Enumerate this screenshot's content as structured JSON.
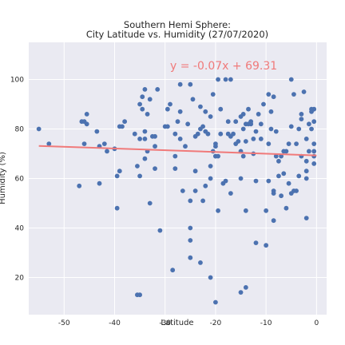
{
  "chart_data": {
    "type": "scatter",
    "title": [
      "Southern Hemi Sphere:",
      "City Latitude vs. Humidity (27/07/2020)"
    ],
    "xlabel": "Latitude",
    "ylabel": "Humidity (%)",
    "xlim": [
      -57,
      2
    ],
    "ylim": [
      5,
      115
    ],
    "xticks": [
      -50,
      -40,
      -30,
      -20,
      -10,
      0
    ],
    "yticks": [
      20,
      40,
      60,
      80,
      100
    ],
    "grid": true,
    "colors": {
      "background": "#eaeaf2",
      "grid": "#ffffff",
      "points": "#4c72b0",
      "regression": "#f07a7a",
      "annotation": "#f07a7a"
    },
    "annotation": {
      "text": "y = -0.07x + 69.31",
      "x": -29,
      "y": 104
    },
    "regression": {
      "slope": -0.07,
      "intercept": 69.31,
      "x_range": [
        -55,
        0
      ]
    },
    "points": [
      [
        -55,
        80
      ],
      [
        -53,
        74
      ],
      [
        -47,
        57
      ],
      [
        -46.5,
        83
      ],
      [
        -46,
        83
      ],
      [
        -46,
        74
      ],
      [
        -45.5,
        86
      ],
      [
        -45.5,
        82
      ],
      [
        -43.5,
        79
      ],
      [
        -43,
        73
      ],
      [
        -43,
        58
      ],
      [
        -42,
        74
      ],
      [
        -41.5,
        71
      ],
      [
        -40,
        72
      ],
      [
        -39.5,
        48
      ],
      [
        -39.5,
        61
      ],
      [
        -39,
        63
      ],
      [
        -39,
        81
      ],
      [
        -38.5,
        81
      ],
      [
        -38,
        83
      ],
      [
        -36,
        78
      ],
      [
        -35.5,
        13
      ],
      [
        -35,
        13
      ],
      [
        -35.5,
        65
      ],
      [
        -35,
        61
      ],
      [
        -35,
        76
      ],
      [
        -35,
        90
      ],
      [
        -34.5,
        88
      ],
      [
        -34.5,
        93
      ],
      [
        -34,
        96
      ],
      [
        -34,
        79
      ],
      [
        -34,
        76
      ],
      [
        -34,
        68
      ],
      [
        -33.5,
        71
      ],
      [
        -33.5,
        86
      ],
      [
        -33,
        92
      ],
      [
        -33,
        50
      ],
      [
        -32.5,
        77
      ],
      [
        -32,
        77
      ],
      [
        -32,
        64
      ],
      [
        -32,
        73
      ],
      [
        -31.5,
        96
      ],
      [
        -31,
        39
      ],
      [
        -30,
        81
      ],
      [
        -29.5,
        81
      ],
      [
        -29.5,
        88
      ],
      [
        -29,
        90
      ],
      [
        -28.5,
        23
      ],
      [
        -28,
        69
      ],
      [
        -28,
        78
      ],
      [
        -28,
        64
      ],
      [
        -27.5,
        83
      ],
      [
        -27,
        98
      ],
      [
        -27,
        76
      ],
      [
        -27,
        87
      ],
      [
        -26.5,
        55
      ],
      [
        -26,
        73
      ],
      [
        -25.5,
        82
      ],
      [
        -25,
        28
      ],
      [
        -25,
        51
      ],
      [
        -25,
        40
      ],
      [
        -25,
        35
      ],
      [
        -25,
        98
      ],
      [
        -24.5,
        92
      ],
      [
        -24,
        55
      ],
      [
        -24,
        77
      ],
      [
        -24,
        63
      ],
      [
        -23.5,
        78
      ],
      [
        -23,
        80
      ],
      [
        -23,
        89
      ],
      [
        -23,
        26
      ],
      [
        -22.5,
        81
      ],
      [
        -22.5,
        51
      ],
      [
        -22,
        79
      ],
      [
        -22,
        87
      ],
      [
        -22,
        57
      ],
      [
        -21.5,
        78
      ],
      [
        -21,
        65
      ],
      [
        -21,
        60
      ],
      [
        -21,
        85
      ],
      [
        -21,
        20
      ],
      [
        -20.5,
        94
      ],
      [
        -20.5,
        71
      ],
      [
        -20,
        10
      ],
      [
        -20,
        73
      ],
      [
        -20,
        74
      ],
      [
        -20,
        69
      ],
      [
        -20,
        69
      ],
      [
        -19.5,
        47
      ],
      [
        -19.5,
        69
      ],
      [
        -19.5,
        100
      ],
      [
        -19,
        88
      ],
      [
        -19,
        78
      ],
      [
        -18.5,
        58
      ],
      [
        -18,
        100
      ],
      [
        -18,
        59
      ],
      [
        -17.5,
        78
      ],
      [
        -17.5,
        83
      ],
      [
        -17,
        54
      ],
      [
        -17,
        77
      ],
      [
        -17,
        100
      ],
      [
        -16.5,
        78
      ],
      [
        -16,
        83
      ],
      [
        -16,
        74
      ],
      [
        -15.5,
        75
      ],
      [
        -15,
        60
      ],
      [
        -15,
        14
      ],
      [
        -15,
        71
      ],
      [
        -15,
        85
      ],
      [
        -14.5,
        86
      ],
      [
        -14.5,
        80
      ],
      [
        -14.5,
        69
      ],
      [
        -14,
        82
      ],
      [
        -14,
        75
      ],
      [
        -14,
        47
      ],
      [
        -14,
        16
      ],
      [
        -13.5,
        82
      ],
      [
        -13.5,
        88
      ],
      [
        -13,
        83
      ],
      [
        -13,
        82
      ],
      [
        -12.5,
        70
      ],
      [
        -12.5,
        76
      ],
      [
        -12,
        79
      ],
      [
        -12,
        34
      ],
      [
        -12,
        59
      ],
      [
        -11.5,
        86
      ],
      [
        -11,
        82
      ],
      [
        -11,
        76
      ],
      [
        -10.5,
        90
      ],
      [
        -10,
        47
      ],
      [
        -10,
        33
      ],
      [
        -9.5,
        94
      ],
      [
        -9.5,
        59
      ],
      [
        -9.5,
        74
      ],
      [
        -9,
        80
      ],
      [
        -9,
        87
      ],
      [
        -8.5,
        93
      ],
      [
        -8.5,
        43
      ],
      [
        -8.5,
        55
      ],
      [
        -8.5,
        54
      ],
      [
        -8,
        79
      ],
      [
        -8,
        69
      ],
      [
        -7.5,
        67
      ],
      [
        -7.5,
        61
      ],
      [
        -7,
        69
      ],
      [
        -7,
        53
      ],
      [
        -6.5,
        62
      ],
      [
        -6.5,
        71
      ],
      [
        -6,
        48
      ],
      [
        -6,
        71
      ],
      [
        -5.5,
        58
      ],
      [
        -5.5,
        74
      ],
      [
        -5,
        54
      ],
      [
        -5,
        81
      ],
      [
        -5,
        100
      ],
      [
        -4.5,
        55
      ],
      [
        -4.5,
        94
      ],
      [
        -4,
        74
      ],
      [
        -4,
        55
      ],
      [
        -3.5,
        61
      ],
      [
        -3.5,
        80
      ],
      [
        -3,
        84
      ],
      [
        -3,
        69
      ],
      [
        -3,
        86
      ],
      [
        -2.5,
        95
      ],
      [
        -2,
        76
      ],
      [
        -2,
        63
      ],
      [
        -2,
        44
      ],
      [
        -2,
        60
      ],
      [
        -2,
        67
      ],
      [
        -1.5,
        82
      ],
      [
        -1.5,
        71
      ],
      [
        -1,
        87
      ],
      [
        -1,
        80
      ],
      [
        -1,
        88
      ],
      [
        -0.5,
        74
      ],
      [
        -0.5,
        71
      ],
      [
        -0.5,
        83
      ],
      [
        -0.5,
        66
      ],
      [
        -0.5,
        88
      ],
      [
        -0.5,
        69
      ]
    ]
  }
}
